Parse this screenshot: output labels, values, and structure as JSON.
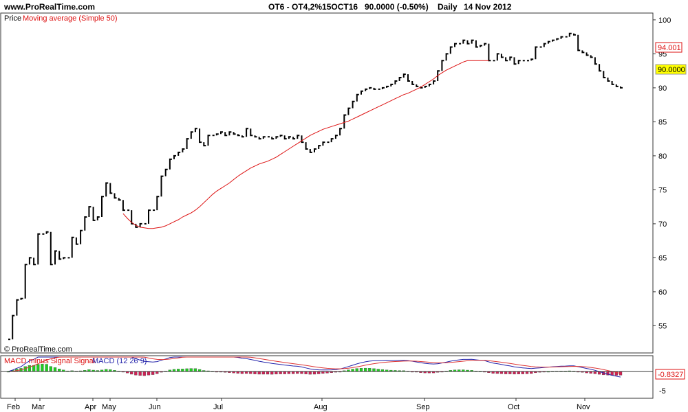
{
  "header": {
    "site": "www.ProRealTime.com",
    "instrument": "OT6 - OT4,2%15OCT16",
    "price": "90.0000 (-0.50%)",
    "period": "Daily",
    "date": "14 Nov 2012"
  },
  "watermark": "© ProRealTime.com",
  "colors": {
    "price": "#000000",
    "ma": "#dd1111",
    "macd": "#2222aa",
    "signal": "#dd3333",
    "hist_pos": "#22cc22",
    "hist_neg": "#cc2255",
    "last_price_bg": "#ffff00"
  },
  "chart_data": [
    {
      "type": "line",
      "legend": [
        "Price",
        "Moving average (Simple 50)"
      ],
      "ylim": [
        51,
        101
      ],
      "yticks": [
        55,
        60,
        65,
        70,
        75,
        80,
        85,
        90,
        95,
        100
      ],
      "months": [
        "Feb",
        "Mar",
        "Apr",
        "May",
        "Jun",
        "Jul",
        "Aug",
        "Sep",
        "Oct",
        "Nov"
      ],
      "price": [
        53,
        56.5,
        58.8,
        59,
        64,
        65,
        64,
        68.5,
        68.5,
        68.8,
        64,
        66,
        64.8,
        65,
        65,
        68,
        67,
        69,
        71,
        72.5,
        70.5,
        71,
        74,
        76,
        74.5,
        73.8,
        73.5,
        72,
        72,
        70,
        69.5,
        70,
        70,
        72,
        72,
        74,
        77,
        78,
        79.5,
        80,
        80.5,
        81,
        82.5,
        83.5,
        84,
        82,
        81.5,
        83,
        83,
        83.2,
        83.5,
        83,
        83.5,
        83.2,
        83,
        82.8,
        84,
        83,
        82.8,
        82.5,
        82.8,
        82.8,
        82.5,
        82.8,
        83,
        82.5,
        82.8,
        82.5,
        83,
        82,
        81,
        80.5,
        81,
        81.5,
        82,
        82,
        82.5,
        83,
        84,
        86,
        87,
        88,
        89,
        89.5,
        89.8,
        90,
        89.8,
        89.8,
        90,
        90.2,
        90.5,
        91,
        91.5,
        92,
        91,
        90.5,
        90.2,
        90,
        90.2,
        90.5,
        91,
        92.5,
        94,
        95,
        96,
        96.5,
        96.5,
        97,
        96.5,
        97,
        96,
        96.2,
        96.5,
        94,
        94,
        95,
        94.5,
        94,
        94.5,
        93.5,
        94,
        94,
        94,
        94.2,
        96,
        96,
        96.5,
        96.8,
        97,
        97.2,
        97.5,
        97.5,
        98,
        97.8,
        95.5,
        95.2,
        94.8,
        94.5,
        93.5,
        92.5,
        91.5,
        91,
        90.5,
        90.2,
        90
      ],
      "ma": {
        "start_index": 27,
        "values": [
          71.5,
          70.8,
          70.2,
          69.8,
          69.5,
          69.4,
          69.3,
          69.3,
          69.4,
          69.5,
          69.7,
          70,
          70.3,
          70.6,
          71,
          71.3,
          71.6,
          72,
          72.5,
          73.1,
          73.7,
          74.3,
          74.8,
          75.2,
          75.6,
          76,
          76.5,
          77,
          77.4,
          77.8,
          78.2,
          78.5,
          78.8,
          79,
          79.2,
          79.5,
          79.8,
          80.2,
          80.6,
          81,
          81.4,
          81.8,
          82.2,
          82.6,
          83,
          83.3,
          83.6,
          83.9,
          84.1,
          84.3,
          84.5,
          84.7,
          84.9,
          85.1,
          85.4,
          85.7,
          86,
          86.3,
          86.6,
          86.9,
          87.2,
          87.5,
          87.8,
          88.1,
          88.4,
          88.7,
          89,
          89.2,
          89.5,
          89.8,
          90.1,
          90.5,
          90.9,
          91.3,
          91.8,
          92.2,
          92.6,
          92.9,
          93.2,
          93.5,
          93.8,
          94.0,
          94.0,
          94.0,
          94.0,
          94.0,
          94.001
        ]
      },
      "last_values": {
        "ma": "94.001",
        "price": "90.0000"
      }
    },
    {
      "type": "bar",
      "legend": [
        "MACD minus Signal Signal",
        "MACD (12 26 9)"
      ],
      "yticks": [
        -5
      ],
      "last_value": "-0.8327"
    }
  ]
}
